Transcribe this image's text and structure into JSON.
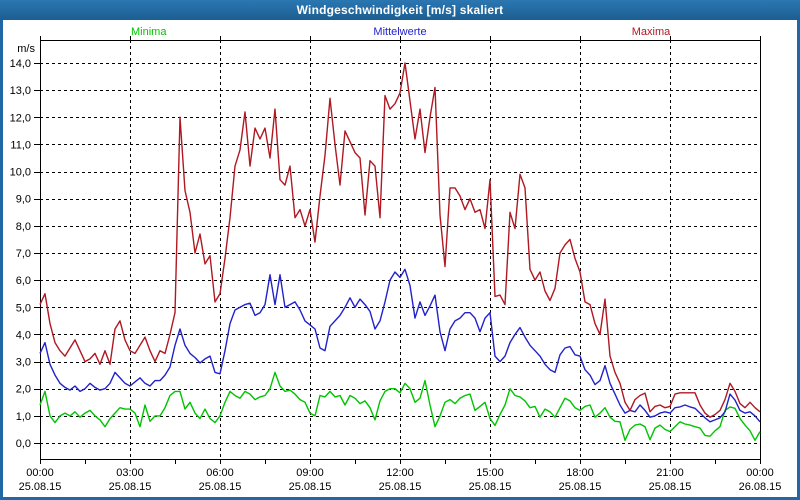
{
  "window": {
    "title": "Windgeschwindigkeit [m/s] skaliert",
    "titlebar_color": "#2268A6",
    "border_color": "#2166A5"
  },
  "legend": {
    "items": [
      {
        "label": "Minima",
        "color": "#00C400"
      },
      {
        "label": "Mittelwerte",
        "color": "#2222CC"
      },
      {
        "label": "Maxima",
        "color": "#B01822"
      }
    ]
  },
  "chart_data": {
    "type": "line",
    "title": "Windgeschwindigkeit [m/s] skaliert",
    "ylabel": "m/s",
    "ylim": [
      0.0,
      14.0
    ],
    "ytick_step": 1.0,
    "y_tick_labels": [
      "0,0",
      "1,0",
      "2,0",
      "3,0",
      "4,0",
      "5,0",
      "6,0",
      "7,0",
      "8,0",
      "9,0",
      "10,0",
      "11,0",
      "12,0",
      "13,0",
      "14,0"
    ],
    "x_hours_range": [
      0,
      24
    ],
    "x_major_tick_hours": [
      0,
      3,
      6,
      9,
      12,
      15,
      18,
      21,
      24
    ],
    "x_minor_tick_step_hours": 1.5,
    "x_tick_labels": [
      {
        "time": "00:00",
        "date": "25.08.15"
      },
      {
        "time": "03:00",
        "date": "25.08.15"
      },
      {
        "time": "06:00",
        "date": "25.08.15"
      },
      {
        "time": "09:00",
        "date": "25.08.15"
      },
      {
        "time": "12:00",
        "date": "25.08.15"
      },
      {
        "time": "15:00",
        "date": "25.08.15"
      },
      {
        "time": "18:00",
        "date": "25.08.15"
      },
      {
        "time": "21:00",
        "date": "25.08.15"
      },
      {
        "time": "00:00",
        "date": "26.08.15"
      }
    ],
    "grid": true,
    "grid_style": "dashed-black",
    "legend_position": "top",
    "sample_interval_minutes": 10,
    "series": [
      {
        "name": "Minima",
        "color": "#00C400",
        "values": [
          1.4,
          1.9,
          1.0,
          0.75,
          1.0,
          1.1,
          1.0,
          1.15,
          0.95,
          1.1,
          1.2,
          1.0,
          0.85,
          0.6,
          0.9,
          1.1,
          1.3,
          1.25,
          1.25,
          1.1,
          0.6,
          1.4,
          0.8,
          1.0,
          1.0,
          1.3,
          1.75,
          1.9,
          1.9,
          1.25,
          1.5,
          1.1,
          0.9,
          1.25,
          0.9,
          0.75,
          1.0,
          1.5,
          1.9,
          1.75,
          1.65,
          1.9,
          1.8,
          1.6,
          1.7,
          1.75,
          2.0,
          2.6,
          2.1,
          1.9,
          1.95,
          1.8,
          1.6,
          1.5,
          1.1,
          1.0,
          1.75,
          1.7,
          1.9,
          1.7,
          1.75,
          1.4,
          1.75,
          1.65,
          1.45,
          1.55,
          1.3,
          0.85,
          1.55,
          1.9,
          2.0,
          2.0,
          1.85,
          2.2,
          2.0,
          1.5,
          1.65,
          2.3,
          1.4,
          0.6,
          1.0,
          1.5,
          1.6,
          1.45,
          1.65,
          1.75,
          1.8,
          1.2,
          1.35,
          1.5,
          0.9,
          0.65,
          1.05,
          1.4,
          2.0,
          1.75,
          1.7,
          1.55,
          1.3,
          1.35,
          0.95,
          1.25,
          1.15,
          0.95,
          1.3,
          1.65,
          1.55,
          1.3,
          1.2,
          1.35,
          1.4,
          0.95,
          1.1,
          1.3,
          0.95,
          0.8,
          0.78,
          0.1,
          0.5,
          0.66,
          0.7,
          0.6,
          0.12,
          0.55,
          0.66,
          0.5,
          0.42,
          0.6,
          0.78,
          0.7,
          0.66,
          0.6,
          0.55,
          0.28,
          0.25,
          0.45,
          0.6,
          1.2,
          1.33,
          1.28,
          0.9,
          0.66,
          0.45,
          0.1,
          0.42
        ]
      },
      {
        "name": "Mittelwerte",
        "color": "#2222CC",
        "values": [
          3.3,
          3.7,
          2.9,
          2.5,
          2.2,
          2.05,
          1.95,
          2.1,
          1.9,
          2.0,
          2.2,
          2.05,
          1.95,
          2.0,
          2.2,
          2.6,
          2.4,
          2.2,
          2.1,
          2.25,
          2.4,
          2.2,
          2.1,
          2.3,
          2.3,
          2.5,
          2.8,
          3.6,
          4.2,
          3.6,
          3.3,
          3.15,
          2.95,
          3.1,
          3.2,
          2.6,
          2.55,
          3.4,
          4.4,
          4.9,
          5.0,
          5.1,
          5.15,
          4.7,
          4.8,
          5.1,
          6.2,
          5.1,
          6.2,
          5.0,
          5.1,
          5.2,
          4.9,
          4.5,
          4.35,
          4.2,
          3.5,
          3.4,
          4.3,
          4.5,
          4.7,
          5.0,
          5.35,
          5.0,
          5.3,
          5.1,
          4.85,
          4.2,
          4.5,
          5.2,
          6.0,
          6.3,
          6.1,
          6.4,
          5.8,
          4.6,
          5.2,
          4.7,
          5.05,
          5.45,
          4.1,
          3.4,
          4.2,
          4.5,
          4.6,
          4.8,
          4.8,
          4.6,
          4.1,
          4.6,
          4.8,
          3.2,
          3.0,
          3.2,
          3.7,
          4.0,
          4.25,
          3.9,
          3.6,
          3.4,
          3.2,
          2.9,
          2.7,
          2.6,
          3.25,
          3.5,
          3.55,
          3.25,
          3.2,
          2.7,
          2.5,
          2.15,
          2.3,
          2.85,
          2.2,
          1.8,
          1.4,
          1.1,
          1.2,
          1.15,
          1.4,
          1.2,
          0.95,
          1.0,
          1.1,
          1.15,
          1.1,
          1.3,
          1.33,
          1.4,
          1.33,
          1.28,
          1.1,
          0.93,
          0.78,
          0.85,
          0.93,
          1.15,
          1.8,
          1.58,
          1.2,
          1.1,
          1.15,
          1.0,
          0.78
        ]
      },
      {
        "name": "Maxima",
        "color": "#B01822",
        "values": [
          5.1,
          5.5,
          4.4,
          3.7,
          3.4,
          3.2,
          3.5,
          3.8,
          3.4,
          3.0,
          3.1,
          3.3,
          2.9,
          3.4,
          2.9,
          4.2,
          4.5,
          3.8,
          3.4,
          3.3,
          3.6,
          3.9,
          3.4,
          3.0,
          3.4,
          3.3,
          4.0,
          4.8,
          12.0,
          9.3,
          8.5,
          7.0,
          7.7,
          6.6,
          6.9,
          5.2,
          5.5,
          6.8,
          8.3,
          10.2,
          10.8,
          12.2,
          10.2,
          11.6,
          11.2,
          11.6,
          10.5,
          12.3,
          9.7,
          9.5,
          10.2,
          8.3,
          8.6,
          8.0,
          8.6,
          7.4,
          9.1,
          10.6,
          12.7,
          11.0,
          9.5,
          11.5,
          11.1,
          10.7,
          10.5,
          8.4,
          10.4,
          10.2,
          8.3,
          12.8,
          12.3,
          12.5,
          12.9,
          14.0,
          12.6,
          11.2,
          12.3,
          10.7,
          12.0,
          13.1,
          8.4,
          6.5,
          9.4,
          9.4,
          9.1,
          8.6,
          9.0,
          8.5,
          8.6,
          7.9,
          9.7,
          5.4,
          5.45,
          5.1,
          8.5,
          7.9,
          9.9,
          9.4,
          6.4,
          6.0,
          6.3,
          5.6,
          5.25,
          5.7,
          7.0,
          7.3,
          7.5,
          6.8,
          6.3,
          5.2,
          5.1,
          4.4,
          4.0,
          5.3,
          3.2,
          2.6,
          2.2,
          1.5,
          1.2,
          1.6,
          1.75,
          1.84,
          1.15,
          1.35,
          1.4,
          1.3,
          1.35,
          1.8,
          1.85,
          1.85,
          1.85,
          1.85,
          1.4,
          1.1,
          0.95,
          1.05,
          1.2,
          1.6,
          2.2,
          1.9,
          1.45,
          1.3,
          1.5,
          1.3,
          1.15
        ]
      }
    ]
  }
}
